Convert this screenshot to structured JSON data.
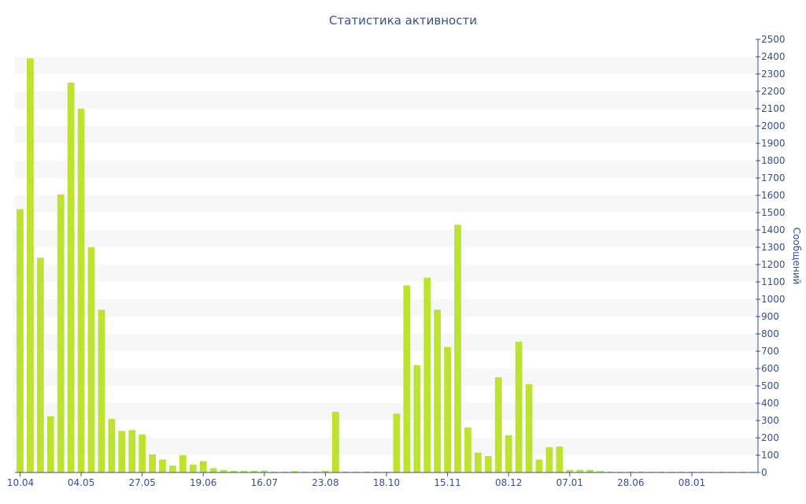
{
  "chart_data": {
    "type": "bar",
    "title": "Статистика активности",
    "ylabel": "Сообщений",
    "xlabel": "",
    "ylim": [
      0,
      2500
    ],
    "y_tick_step": 100,
    "y_axis_side": "right",
    "grid": "alternating horizontal bands",
    "bar_color": "#bde332",
    "band_color": "#f7f7f7",
    "text_color": "#3a4e8c",
    "x_tick_labels": [
      "10.04",
      "04.05",
      "27.05",
      "19.06",
      "16.07",
      "23.08",
      "18.10",
      "15.11",
      "08.12",
      "07.01",
      "28.06",
      "08.01"
    ],
    "x_tick_bar_index": [
      0,
      6,
      12,
      18,
      24,
      30,
      36,
      42,
      48,
      54,
      60,
      66
    ],
    "values": [
      1520,
      2390,
      1240,
      325,
      1605,
      2250,
      2100,
      1300,
      940,
      310,
      240,
      245,
      220,
      105,
      75,
      40,
      100,
      45,
      65,
      25,
      15,
      10,
      10,
      10,
      12,
      5,
      5,
      8,
      5,
      5,
      10,
      350,
      5,
      5,
      5,
      5,
      5,
      340,
      1080,
      620,
      1125,
      940,
      725,
      1430,
      260,
      115,
      95,
      550,
      215,
      755,
      510,
      75,
      145,
      150,
      15,
      15,
      15,
      8,
      5,
      3,
      3,
      3,
      3,
      3,
      3,
      3,
      3,
      3,
      3,
      3,
      3,
      3,
      3
    ]
  }
}
